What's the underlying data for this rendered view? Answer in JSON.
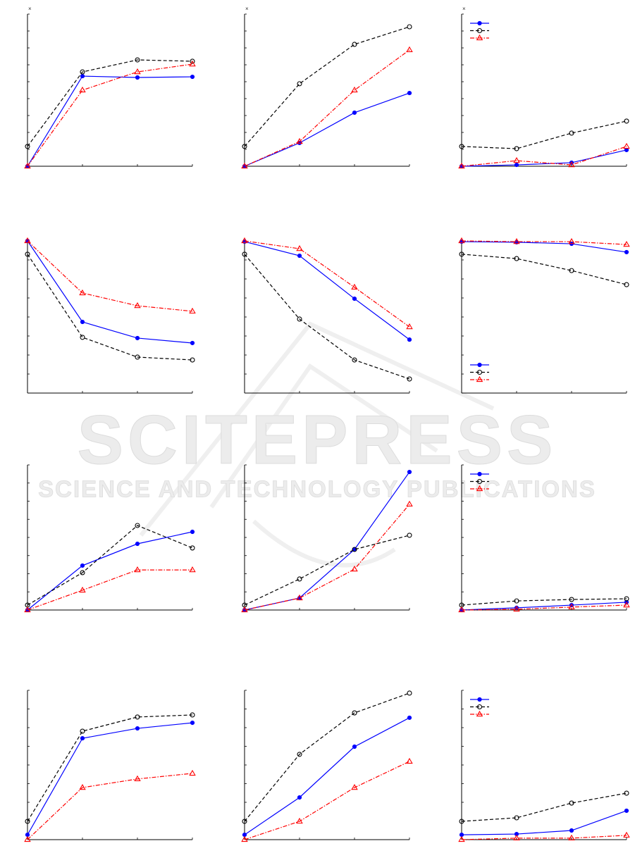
{
  "chart_data": [
    {
      "type": "line",
      "annotation": "×",
      "x": [
        1,
        2,
        3,
        4
      ],
      "xlim": [
        1,
        4
      ],
      "xticks": [
        1,
        2,
        3,
        4
      ],
      "ylim": [
        0,
        9
      ],
      "yticks": [
        0,
        1,
        2,
        3,
        4,
        5,
        6,
        7,
        8,
        9
      ],
      "series": [
        {
          "color": "#0000ff",
          "linestyle": "solid",
          "marker": "dot",
          "values": [
            0,
            5.33,
            5.25,
            5.29
          ]
        },
        {
          "color": "#000000",
          "linestyle": "dashed",
          "marker": "circle",
          "values": [
            1.17,
            5.58,
            6.29,
            6.21
          ]
        },
        {
          "color": "#ff0000",
          "linestyle": "dashdot",
          "marker": "triangle",
          "values": [
            0,
            4.5,
            5.58,
            6.04
          ]
        }
      ]
    },
    {
      "type": "line",
      "annotation": "×",
      "x": [
        1,
        2,
        3,
        4
      ],
      "xlim": [
        1,
        4
      ],
      "xticks": [
        1,
        2,
        3,
        4
      ],
      "ylim": [
        0,
        9
      ],
      "yticks": [
        0,
        1,
        2,
        3,
        4,
        5,
        6,
        7,
        8,
        9
      ],
      "series": [
        {
          "color": "#0000ff",
          "linestyle": "solid",
          "marker": "dot",
          "values": [
            0,
            1.38,
            3.17,
            4.33
          ]
        },
        {
          "color": "#000000",
          "linestyle": "dashed",
          "marker": "circle",
          "values": [
            1.17,
            4.88,
            7.21,
            8.25
          ]
        },
        {
          "color": "#ff0000",
          "linestyle": "dashdot",
          "marker": "triangle",
          "values": [
            0,
            1.46,
            4.5,
            6.88
          ]
        }
      ]
    },
    {
      "type": "line",
      "annotation": "×",
      "legend": "upper left",
      "x": [
        1,
        2,
        3,
        4
      ],
      "xlim": [
        1,
        4
      ],
      "xticks": [
        1,
        2,
        3,
        4
      ],
      "ylim": [
        0,
        9
      ],
      "yticks": [
        0,
        1,
        2,
        3,
        4,
        5,
        6,
        7,
        8,
        9
      ],
      "series": [
        {
          "color": "#0000ff",
          "linestyle": "solid",
          "marker": "dot",
          "values": [
            0,
            0.08,
            0.21,
            0.96
          ]
        },
        {
          "color": "#000000",
          "linestyle": "dashed",
          "marker": "circle",
          "values": [
            1.17,
            1.04,
            1.96,
            2.67
          ]
        },
        {
          "color": "#ff0000",
          "linestyle": "dashdot",
          "marker": "triangle",
          "values": [
            0,
            0.33,
            0.08,
            1.17
          ]
        }
      ]
    },
    {
      "type": "line",
      "x": [
        1,
        2,
        3,
        4
      ],
      "xlim": [
        1,
        4
      ],
      "xticks": [
        1,
        2,
        3,
        4
      ],
      "ylim": [
        0,
        8
      ],
      "yticks": [
        0,
        1,
        2,
        3,
        4,
        5,
        6,
        7,
        8
      ],
      "series": [
        {
          "color": "#0000ff",
          "linestyle": "solid",
          "marker": "dot",
          "values": [
            8,
            3.74,
            2.89,
            2.63
          ]
        },
        {
          "color": "#000000",
          "linestyle": "dashed",
          "marker": "circle",
          "values": [
            7.3,
            2.93,
            1.89,
            1.74
          ]
        },
        {
          "color": "#ff0000",
          "linestyle": "dashdot",
          "marker": "triangle",
          "values": [
            8,
            5.26,
            4.59,
            4.3
          ]
        }
      ]
    },
    {
      "type": "line",
      "x": [
        1,
        2,
        3,
        4
      ],
      "xlim": [
        1,
        4
      ],
      "xticks": [
        1,
        2,
        3,
        4
      ],
      "ylim": [
        0,
        8
      ],
      "yticks": [
        0,
        1,
        2,
        3,
        4,
        5,
        6,
        7,
        8
      ],
      "series": [
        {
          "color": "#0000ff",
          "linestyle": "solid",
          "marker": "dot",
          "values": [
            7.96,
            7.22,
            4.96,
            2.81
          ]
        },
        {
          "color": "#000000",
          "linestyle": "dashed",
          "marker": "circle",
          "values": [
            7.3,
            3.89,
            1.74,
            0.74
          ]
        },
        {
          "color": "#ff0000",
          "linestyle": "dashdot",
          "marker": "triangle",
          "values": [
            8,
            7.59,
            5.56,
            3.48
          ]
        }
      ]
    },
    {
      "type": "line",
      "legend": "lower left",
      "x": [
        1,
        2,
        3,
        4
      ],
      "xlim": [
        1,
        4
      ],
      "xticks": [
        1,
        2,
        3,
        4
      ],
      "ylim": [
        0,
        8
      ],
      "yticks": [
        0,
        1,
        2,
        3,
        4,
        5,
        6,
        7,
        8
      ],
      "series": [
        {
          "color": "#0000ff",
          "linestyle": "solid",
          "marker": "dot",
          "values": [
            7.96,
            7.93,
            7.85,
            7.41
          ]
        },
        {
          "color": "#000000",
          "linestyle": "dashed",
          "marker": "circle",
          "values": [
            7.3,
            7.07,
            6.44,
            5.7
          ]
        },
        {
          "color": "#ff0000",
          "linestyle": "dashdot",
          "marker": "triangle",
          "values": [
            8,
            7.96,
            7.96,
            7.81
          ]
        }
      ]
    },
    {
      "type": "line",
      "x": [
        1,
        2,
        3,
        4
      ],
      "xlim": [
        1,
        4
      ],
      "xticks": [
        1,
        2,
        3,
        4
      ],
      "ylim": [
        0,
        8
      ],
      "yticks": [
        0,
        1,
        2,
        3,
        4,
        5,
        6,
        7,
        8
      ],
      "series": [
        {
          "color": "#0000ff",
          "linestyle": "solid",
          "marker": "dot",
          "values": [
            0,
            2.45,
            3.65,
            4.31
          ]
        },
        {
          "color": "#000000",
          "linestyle": "dashed",
          "marker": "circle",
          "values": [
            0.27,
            2.06,
            4.66,
            3.42
          ]
        },
        {
          "color": "#ff0000",
          "linestyle": "dashdot",
          "marker": "triangle",
          "values": [
            0,
            1.09,
            2.21,
            2.21
          ]
        }
      ]
    },
    {
      "type": "line",
      "x": [
        1,
        2,
        3,
        4
      ],
      "xlim": [
        1,
        4
      ],
      "xticks": [
        1,
        2,
        3,
        4
      ],
      "ylim": [
        0,
        8
      ],
      "yticks": [
        0,
        1,
        2,
        3,
        4,
        5,
        6,
        7,
        8
      ],
      "series": [
        {
          "color": "#0000ff",
          "linestyle": "solid",
          "marker": "dot",
          "values": [
            0,
            0.66,
            3.34,
            7.61
          ]
        },
        {
          "color": "#000000",
          "linestyle": "dashed",
          "marker": "circle",
          "values": [
            0.27,
            1.71,
            3.34,
            4.12
          ]
        },
        {
          "color": "#ff0000",
          "linestyle": "dashdot",
          "marker": "triangle",
          "values": [
            0,
            0.66,
            2.25,
            5.83
          ]
        }
      ]
    },
    {
      "type": "line",
      "legend": "upper left",
      "x": [
        1,
        2,
        3,
        4
      ],
      "xlim": [
        1,
        4
      ],
      "xticks": [
        1,
        2,
        3,
        4
      ],
      "ylim": [
        0,
        8
      ],
      "yticks": [
        0,
        1,
        2,
        3,
        4,
        5,
        6,
        7,
        8
      ],
      "series": [
        {
          "color": "#0000ff",
          "linestyle": "solid",
          "marker": "dot",
          "values": [
            0,
            0.12,
            0.27,
            0.43
          ]
        },
        {
          "color": "#000000",
          "linestyle": "dashed",
          "marker": "circle",
          "values": [
            0.27,
            0.5,
            0.58,
            0.62
          ]
        },
        {
          "color": "#ff0000",
          "linestyle": "dashdot",
          "marker": "triangle",
          "values": [
            0,
            0.04,
            0.16,
            0.27
          ]
        }
      ]
    },
    {
      "type": "line",
      "x": [
        1,
        2,
        3,
        4
      ],
      "xlim": [
        1,
        4
      ],
      "xticks": [
        1,
        2,
        3,
        4
      ],
      "ylim": [
        0,
        8
      ],
      "yticks": [
        0,
        1,
        2,
        3,
        4,
        5,
        6,
        7,
        8
      ],
      "series": [
        {
          "color": "#0000ff",
          "linestyle": "solid",
          "marker": "dot",
          "values": [
            0.26,
            5.43,
            5.96,
            6.26
          ]
        },
        {
          "color": "#000000",
          "linestyle": "dashed",
          "marker": "circle",
          "values": [
            0.98,
            5.81,
            6.57,
            6.68
          ]
        },
        {
          "color": "#ff0000",
          "linestyle": "dashdot",
          "marker": "triangle",
          "values": [
            0,
            2.79,
            3.25,
            3.55
          ]
        }
      ]
    },
    {
      "type": "line",
      "x": [
        1,
        2,
        3,
        4
      ],
      "xlim": [
        1,
        4
      ],
      "xticks": [
        1,
        2,
        3,
        4
      ],
      "ylim": [
        0,
        8
      ],
      "yticks": [
        0,
        1,
        2,
        3,
        4,
        5,
        6,
        7,
        8
      ],
      "series": [
        {
          "color": "#0000ff",
          "linestyle": "solid",
          "marker": "dot",
          "values": [
            0.26,
            2.26,
            4.98,
            6.53
          ]
        },
        {
          "color": "#000000",
          "linestyle": "dashed",
          "marker": "circle",
          "values": [
            0.98,
            4.57,
            6.79,
            7.85
          ]
        },
        {
          "color": "#ff0000",
          "linestyle": "dashdot",
          "marker": "triangle",
          "values": [
            0,
            0.98,
            2.79,
            4.19
          ]
        }
      ]
    },
    {
      "type": "line",
      "legend": "upper left",
      "x": [
        1,
        2,
        3,
        4
      ],
      "xlim": [
        1,
        4
      ],
      "xticks": [
        1,
        2,
        3,
        4
      ],
      "ylim": [
        0,
        8
      ],
      "yticks": [
        0,
        1,
        2,
        3,
        4,
        5,
        6,
        7,
        8
      ],
      "series": [
        {
          "color": "#0000ff",
          "linestyle": "solid",
          "marker": "dot",
          "values": [
            0.26,
            0.3,
            0.49,
            1.55
          ]
        },
        {
          "color": "#000000",
          "linestyle": "dashed",
          "marker": "circle",
          "values": [
            0.98,
            1.17,
            1.96,
            2.49
          ]
        },
        {
          "color": "#ff0000",
          "linestyle": "dashdot",
          "marker": "triangle",
          "values": [
            0,
            0.08,
            0.08,
            0.23
          ]
        }
      ]
    }
  ],
  "watermark": {
    "title": "SCITEPRESS",
    "subtitle": "SCIENCE AND TECHNOLOGY PUBLICATIONS"
  }
}
